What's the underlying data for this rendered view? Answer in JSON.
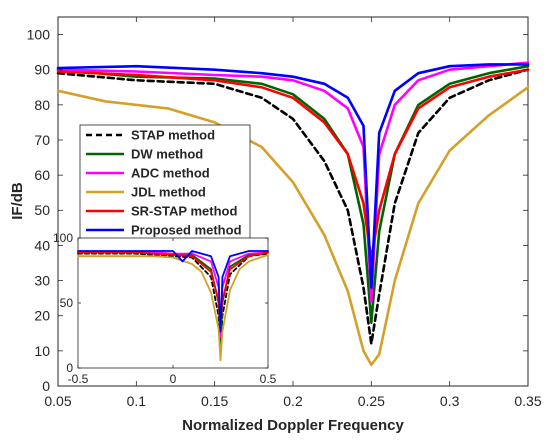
{
  "chart_data": [
    {
      "type": "line",
      "title": "",
      "xlabel": "Normalized Doppler Frequency",
      "ylabel": "IF/dB",
      "xlim": [
        0.05,
        0.35
      ],
      "ylim": [
        0,
        105
      ],
      "xticks": [
        0.05,
        0.1,
        0.15,
        0.2,
        0.25,
        0.3,
        0.35
      ],
      "xtick_labels": [
        "0.05",
        "0.1",
        "0.15",
        "0.2",
        "0.25",
        "0.3",
        "0.35"
      ],
      "yticks": [
        0,
        10,
        20,
        30,
        40,
        50,
        60,
        70,
        80,
        90,
        100
      ],
      "ytick_labels": [
        "0",
        "10",
        "20",
        "30",
        "40",
        "50",
        "60",
        "70",
        "80",
        "90",
        "100"
      ],
      "grid": false,
      "legend_position": "lower-left",
      "series": [
        {
          "name": "STAP method",
          "color": "#000000",
          "dash": "dashed",
          "x": [
            0.05,
            0.1,
            0.15,
            0.18,
            0.2,
            0.22,
            0.235,
            0.245,
            0.25,
            0.255,
            0.265,
            0.28,
            0.3,
            0.325,
            0.35
          ],
          "y": [
            89,
            87,
            86,
            82,
            76,
            64,
            50,
            28,
            12,
            26,
            52,
            72,
            82,
            87,
            90
          ]
        },
        {
          "name": "DW method",
          "color": "#006400",
          "dash": "solid",
          "x": [
            0.05,
            0.1,
            0.15,
            0.18,
            0.2,
            0.22,
            0.235,
            0.245,
            0.25,
            0.255,
            0.265,
            0.28,
            0.3,
            0.325,
            0.35
          ],
          "y": [
            90,
            88,
            87.5,
            86,
            83,
            76,
            66,
            46,
            18,
            44,
            66,
            80,
            86,
            89,
            91
          ]
        },
        {
          "name": "ADC method",
          "color": "#ff00ff",
          "dash": "solid",
          "x": [
            0.05,
            0.1,
            0.15,
            0.18,
            0.2,
            0.22,
            0.235,
            0.245,
            0.25,
            0.255,
            0.265,
            0.28,
            0.3,
            0.325,
            0.35
          ],
          "y": [
            90,
            89.5,
            88.5,
            88,
            87,
            84,
            79,
            68,
            24,
            66,
            80,
            87,
            90,
            91,
            92
          ]
        },
        {
          "name": "JDL method",
          "color": "#d4a029",
          "dash": "solid",
          "x": [
            0.05,
            0.08,
            0.12,
            0.15,
            0.18,
            0.2,
            0.22,
            0.235,
            0.245,
            0.25,
            0.255,
            0.265,
            0.28,
            0.3,
            0.325,
            0.35
          ],
          "y": [
            84,
            81,
            79,
            75,
            68,
            58,
            43,
            27,
            10,
            6,
            9,
            30,
            52,
            67,
            77,
            85
          ]
        },
        {
          "name": "SR-STAP method",
          "color": "#ff0000",
          "dash": "solid",
          "x": [
            0.05,
            0.1,
            0.15,
            0.18,
            0.2,
            0.22,
            0.235,
            0.245,
            0.25,
            0.255,
            0.265,
            0.28,
            0.3,
            0.325,
            0.35
          ],
          "y": [
            89.5,
            88.5,
            87,
            85,
            82,
            75,
            66,
            52,
            36,
            50,
            66,
            79,
            85,
            88,
            90
          ]
        },
        {
          "name": "Proposed method",
          "color": "#0000ff",
          "dash": "solid",
          "x": [
            0.05,
            0.1,
            0.15,
            0.18,
            0.2,
            0.22,
            0.235,
            0.245,
            0.25,
            0.255,
            0.265,
            0.28,
            0.3,
            0.325,
            0.35
          ],
          "y": [
            90.5,
            91,
            90,
            89,
            88,
            86,
            82,
            74,
            28,
            72,
            84,
            89,
            91,
            91.5,
            91.5
          ]
        }
      ]
    },
    {
      "type": "line",
      "title": "",
      "xlabel": "",
      "ylabel": "",
      "xlim": [
        -0.5,
        0.5
      ],
      "ylim": [
        0,
        100
      ],
      "xticks": [
        -0.5,
        0,
        0.5
      ],
      "xtick_labels": [
        "-0.5",
        "0",
        "0.5"
      ],
      "yticks": [
        0,
        50,
        100
      ],
      "ytick_labels": [
        "0",
        "50",
        "100"
      ],
      "grid": false,
      "series": [
        {
          "name": "STAP method",
          "color": "#000000",
          "dash": "dashed",
          "x": [
            -0.5,
            -0.2,
            -0.1,
            0,
            0.1,
            0.2,
            0.24,
            0.25,
            0.26,
            0.3,
            0.4,
            0.5
          ],
          "y": [
            88,
            88,
            87,
            86,
            85,
            70,
            40,
            12,
            40,
            72,
            86,
            88
          ]
        },
        {
          "name": "DW method",
          "color": "#006400",
          "dash": "solid",
          "x": [
            -0.5,
            -0.2,
            -0.1,
            0,
            0.1,
            0.2,
            0.24,
            0.25,
            0.26,
            0.3,
            0.4,
            0.5
          ],
          "y": [
            89,
            89,
            88,
            87,
            87,
            76,
            50,
            18,
            50,
            78,
            87,
            89
          ]
        },
        {
          "name": "ADC method",
          "color": "#ff00ff",
          "dash": "solid",
          "x": [
            -0.5,
            -0.2,
            -0.1,
            0,
            0.1,
            0.2,
            0.24,
            0.25,
            0.26,
            0.3,
            0.4,
            0.5
          ],
          "y": [
            89,
            89,
            89,
            88,
            88,
            82,
            62,
            24,
            62,
            82,
            88,
            89
          ]
        },
        {
          "name": "JDL method",
          "color": "#d4a029",
          "dash": "solid",
          "x": [
            -0.5,
            -0.3,
            -0.2,
            -0.1,
            0,
            0.1,
            0.15,
            0.2,
            0.24,
            0.25,
            0.26,
            0.3,
            0.35,
            0.4,
            0.5
          ],
          "y": [
            86,
            86,
            86,
            86,
            85,
            80,
            74,
            58,
            30,
            6,
            28,
            60,
            76,
            82,
            87
          ]
        },
        {
          "name": "SR-STAP method",
          "color": "#ff0000",
          "dash": "solid",
          "x": [
            -0.5,
            -0.2,
            -0.1,
            0,
            0.1,
            0.2,
            0.24,
            0.25,
            0.26,
            0.3,
            0.4,
            0.5
          ],
          "y": [
            89,
            89,
            88,
            87,
            86,
            74,
            52,
            36,
            52,
            76,
            86,
            89
          ]
        },
        {
          "name": "Proposed method",
          "color": "#0000ff",
          "dash": "solid",
          "x": [
            -0.5,
            -0.2,
            -0.1,
            0,
            0.05,
            0.1,
            0.2,
            0.24,
            0.25,
            0.26,
            0.3,
            0.4,
            0.5
          ],
          "y": [
            90,
            90,
            90,
            90,
            82,
            90,
            86,
            70,
            28,
            70,
            86,
            90,
            90
          ]
        }
      ]
    }
  ]
}
